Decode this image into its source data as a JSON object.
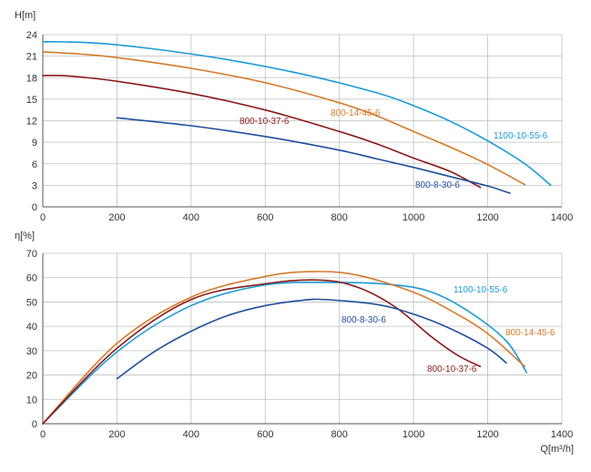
{
  "chart_data": [
    {
      "type": "line",
      "ylabel": "H[m]",
      "xlabel": "",
      "xlim": [
        0,
        1400
      ],
      "ylim": [
        0,
        24
      ],
      "xticks": [
        "0",
        "200",
        "400",
        "600",
        "800",
        "1000",
        "1200",
        "1400"
      ],
      "yticks": [
        "0",
        "3",
        "6",
        "9",
        "12",
        "15",
        "18",
        "21",
        "24"
      ],
      "grid": true,
      "series": [
        {
          "name": "1100-10-55-6",
          "color": "#1a9ad6",
          "x": [
            0,
            50,
            150,
            300,
            500,
            700,
            900,
            1000,
            1100,
            1200,
            1300,
            1370
          ],
          "y": [
            23.0,
            23.0,
            22.8,
            22.0,
            20.5,
            18.5,
            15.9,
            14.1,
            11.9,
            9.2,
            6.0,
            3.0
          ]
        },
        {
          "name": "800-14-45-6",
          "color": "#d47a2a",
          "x": [
            0,
            100,
            200,
            400,
            600,
            800,
            900,
            1000,
            1100,
            1200,
            1300
          ],
          "y": [
            21.6,
            21.3,
            20.8,
            19.3,
            17.3,
            14.5,
            12.7,
            10.5,
            8.3,
            5.9,
            3.1
          ]
        },
        {
          "name": "800-10-37-6",
          "color": "#8b1a1a",
          "x": [
            0,
            50,
            100,
            200,
            400,
            600,
            800,
            900,
            1000,
            1100,
            1180
          ],
          "y": [
            18.3,
            18.3,
            18.1,
            17.5,
            15.8,
            13.5,
            10.5,
            8.8,
            6.8,
            4.9,
            2.7
          ]
        },
        {
          "name": "800-8-30-6",
          "color": "#1f4f9c",
          "x": [
            200,
            400,
            600,
            800,
            900,
            1000,
            1100,
            1200,
            1260
          ],
          "y": [
            12.4,
            11.3,
            9.8,
            7.9,
            6.7,
            5.5,
            4.2,
            2.9,
            1.9
          ]
        }
      ]
    },
    {
      "type": "line",
      "ylabel": "η[%]",
      "xlabel": "Q[m³/h]",
      "xlim": [
        0,
        1400
      ],
      "ylim": [
        0,
        70
      ],
      "xticks": [
        "0",
        "200",
        "400",
        "600",
        "800",
        "1000",
        "1200",
        "1400"
      ],
      "yticks": [
        "0",
        "10",
        "20",
        "30",
        "40",
        "50",
        "60",
        "70"
      ],
      "grid": true,
      "series": [
        {
          "name": "1100-10-55-6",
          "color": "#1a9ad6",
          "x": [
            0,
            200,
            400,
            600,
            800,
            950,
            1050,
            1150,
            1250,
            1305
          ],
          "y": [
            0,
            29.5,
            48.5,
            57.0,
            58.0,
            57.0,
            54.0,
            46.0,
            34.0,
            21.0
          ]
        },
        {
          "name": "800-14-45-6",
          "color": "#d47a2a",
          "x": [
            0,
            200,
            400,
            600,
            730,
            850,
            1000,
            1100,
            1200,
            1300
          ],
          "y": [
            0,
            33.0,
            52.0,
            60.5,
            62.5,
            61.0,
            54.0,
            46.5,
            37.0,
            23.5
          ]
        },
        {
          "name": "800-10-37-6",
          "color": "#8b1a1a",
          "x": [
            0,
            200,
            400,
            600,
            750,
            850,
            950,
            1050,
            1120,
            1180
          ],
          "y": [
            0,
            31.0,
            51.0,
            57.5,
            59.0,
            56.0,
            48.0,
            35.5,
            28.0,
            23.5
          ]
        },
        {
          "name": "800-8-30-6",
          "color": "#1f4f9c",
          "x": [
            200,
            300,
            400,
            500,
            600,
            700,
            760,
            900,
            1000,
            1100,
            1200,
            1250
          ],
          "y": [
            18.5,
            29.5,
            38.0,
            44.5,
            48.5,
            50.7,
            51.0,
            49.0,
            45.0,
            39.0,
            31.0,
            25.0
          ]
        }
      ]
    }
  ]
}
